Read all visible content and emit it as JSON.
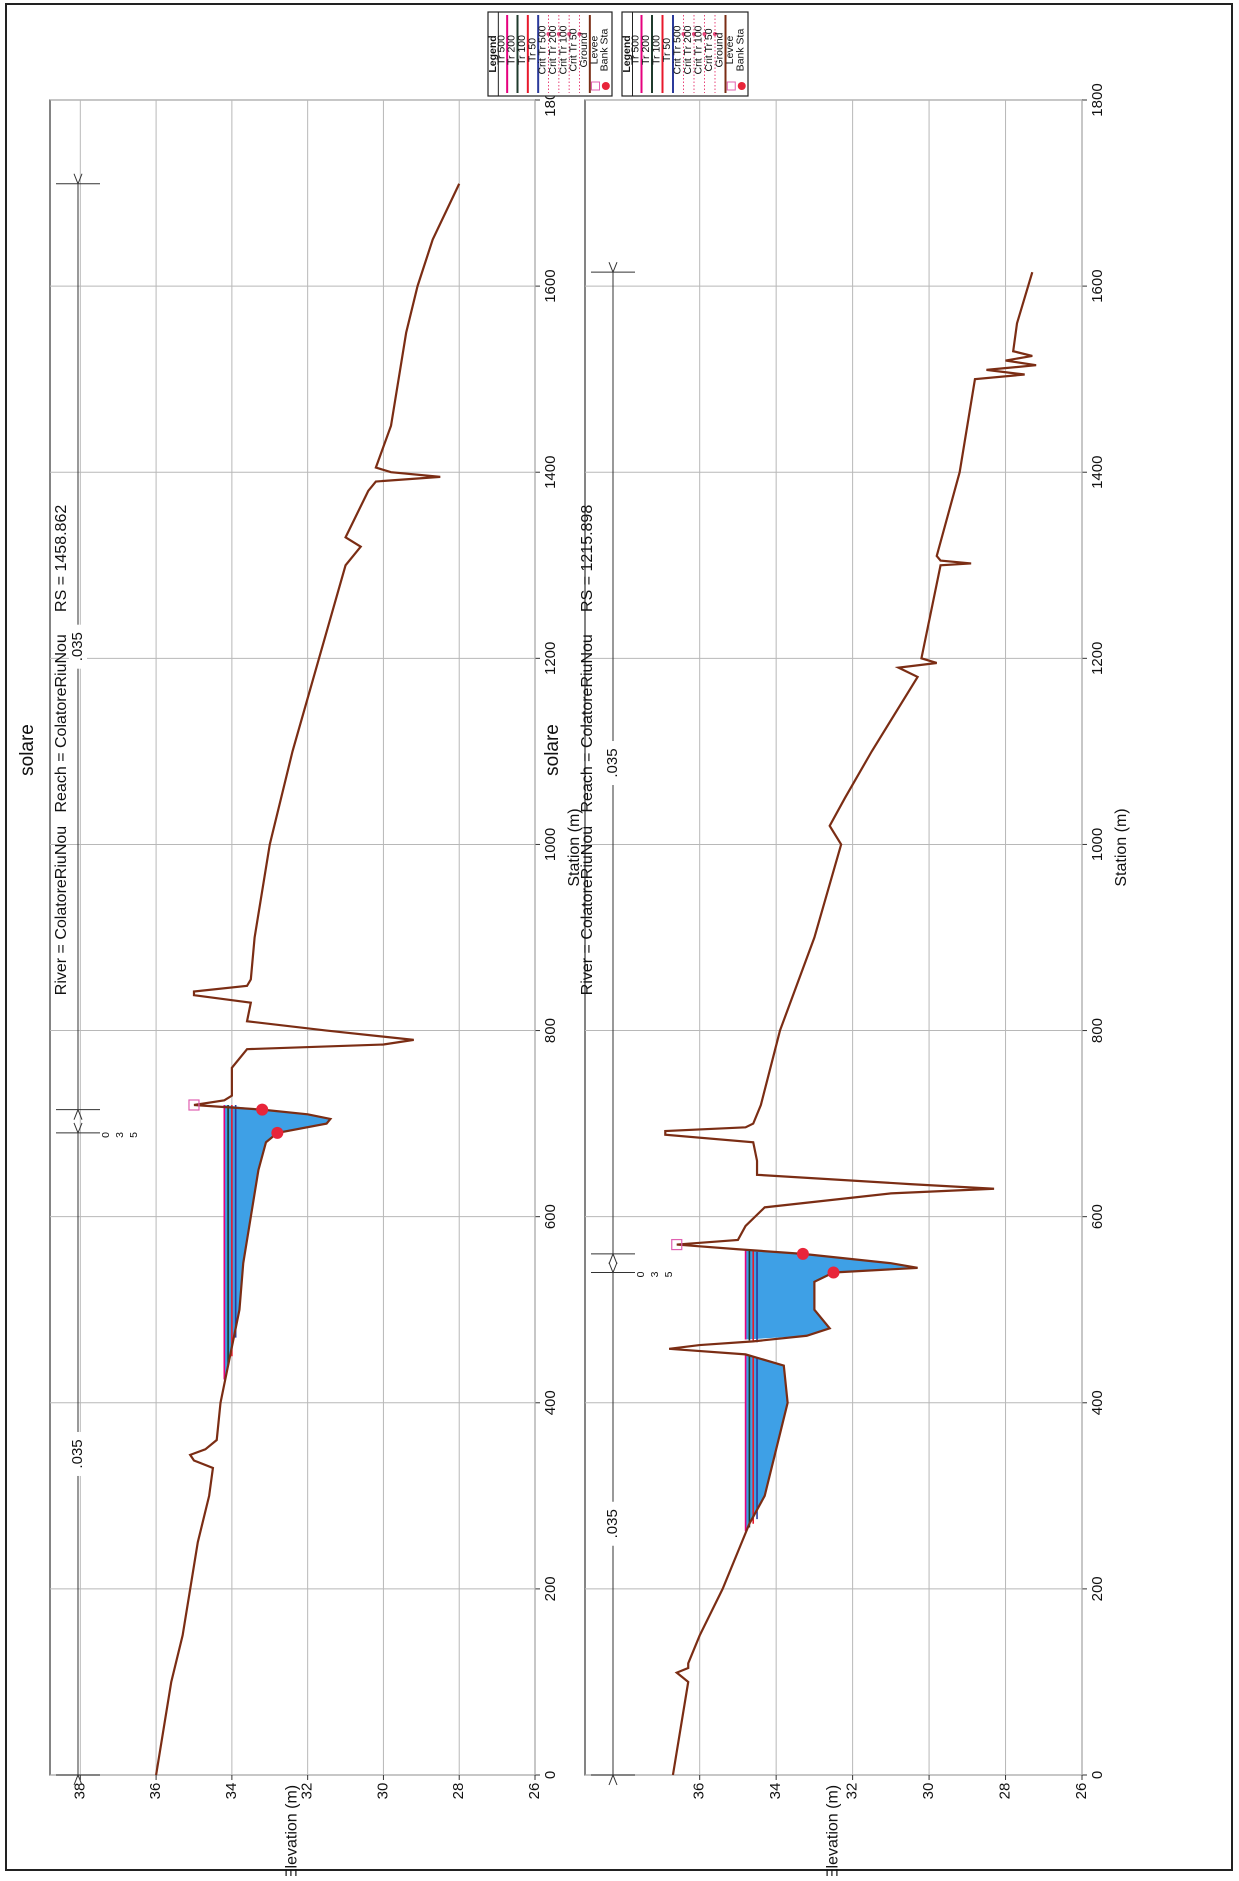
{
  "chart_data": [
    {
      "type": "cross-section",
      "title": "solare",
      "subtitle": "River = ColatoreRiuNou   Reach = ColatoreRiuNou     RS = 1458.862",
      "xlabel": "Station (m)",
      "ylabel": "Elevation (m)",
      "xlim": [
        0,
        1800
      ],
      "xticks": [
        0,
        200,
        400,
        600,
        800,
        1000,
        1200,
        1400,
        1600,
        1800
      ],
      "ylim": [
        26,
        38.8
      ],
      "yticks": [
        26,
        28,
        30,
        32,
        34,
        36,
        38
      ],
      "grid": true,
      "legend_title": "Legend",
      "series": [
        {
          "name": "Tr 500",
          "color": "#e6007e",
          "x": [
            425,
            720
          ],
          "values": [
            34.2,
            34.2
          ]
        },
        {
          "name": "Tr 200",
          "color": "#1f3b2c",
          "x": [
            440,
            720
          ],
          "values": [
            34.1,
            34.1
          ]
        },
        {
          "name": "Tr 100",
          "color": "#e8192c",
          "x": [
            450,
            720
          ],
          "values": [
            34.0,
            34.0
          ]
        },
        {
          "name": "Tr 50",
          "color": "#2b3a9b",
          "x": [
            470,
            720
          ],
          "values": [
            33.9,
            33.9
          ]
        }
      ],
      "crit_series": [
        {
          "name": "Crit Tr 500",
          "color": "#e8447a"
        },
        {
          "name": "Crit Tr 200",
          "color": "#e8447a"
        },
        {
          "name": "Crit Tr 100",
          "color": "#e8447a"
        },
        {
          "name": "Crit Tr 50",
          "color": "#e8447a"
        }
      ],
      "ground": {
        "name": "Ground",
        "color": "#7b2d14",
        "x": [
          0,
          50,
          100,
          150,
          200,
          250,
          300,
          330,
          338,
          344,
          350,
          360,
          400,
          440,
          500,
          550,
          600,
          650,
          680,
          690,
          700,
          705,
          710,
          715,
          720,
          725,
          730,
          760,
          780,
          785,
          790,
          800,
          810,
          830,
          838,
          842,
          848,
          855,
          900,
          1000,
          1100,
          1200,
          1300,
          1320,
          1330,
          1380,
          1390,
          1395,
          1400,
          1405,
          1450,
          1500,
          1550,
          1600,
          1650,
          1710
        ],
        "values": [
          36.0,
          35.8,
          35.6,
          35.3,
          35.1,
          34.9,
          34.6,
          34.5,
          35.0,
          35.1,
          34.7,
          34.4,
          34.3,
          34.1,
          33.8,
          33.7,
          33.5,
          33.3,
          33.1,
          32.8,
          31.5,
          31.4,
          32.0,
          33.2,
          35.0,
          34.2,
          34.0,
          34.0,
          33.6,
          30.0,
          29.2,
          31.5,
          33.6,
          33.5,
          35.0,
          35.0,
          33.6,
          33.5,
          33.4,
          33.0,
          32.4,
          31.7,
          31.0,
          30.6,
          31.0,
          30.4,
          30.2,
          28.5,
          29.8,
          30.2,
          29.8,
          29.6,
          29.4,
          29.1,
          28.7,
          28.0
        ]
      },
      "levee": {
        "name": "Levee",
        "color": "#e060b0",
        "x": [
          720
        ],
        "values": [
          35.0
        ]
      },
      "bank_stations": {
        "name": "Bank Sta",
        "color": "#e8253a",
        "x": [
          690,
          715
        ],
        "values": [
          32.8,
          33.2
        ]
      },
      "bank_labels": [
        "0",
        "3",
        "5"
      ],
      "roughness": [
        {
          "label": ".035",
          "x": [
            0,
            690
          ]
        },
        {
          "label": ".035",
          "x": [
            715,
            1710
          ]
        }
      ]
    },
    {
      "type": "cross-section",
      "title": "solare",
      "subtitle": "River = ColatoreRiuNou   Reach = ColatoreRiuNou     RS = 1215.898",
      "xlabel": "Station (m)",
      "ylabel": "Elevation (m)",
      "xlim": [
        0,
        1800
      ],
      "xticks": [
        0,
        200,
        400,
        600,
        800,
        1000,
        1200,
        1400,
        1600,
        1800
      ],
      "ylim": [
        26,
        39
      ],
      "yticks": [
        26,
        28,
        30,
        32,
        34,
        36
      ],
      "grid": true,
      "legend_title": "Legend",
      "series": [
        {
          "name": "Tr 500",
          "color": "#e6007e",
          "x": [
            262,
            452,
            460,
            468,
            565
          ],
          "values": [
            34.8,
            34.8,
            null,
            34.8,
            34.8
          ]
        },
        {
          "name": "Tr 200",
          "color": "#1f3b2c",
          "x": [
            266,
            451,
            460,
            467,
            564
          ],
          "values": [
            34.7,
            34.7,
            null,
            34.7,
            34.7
          ]
        },
        {
          "name": "Tr 100",
          "color": "#e8192c",
          "x": [
            270,
            450,
            460,
            466,
            563
          ],
          "values": [
            34.6,
            34.6,
            null,
            34.6,
            34.6
          ]
        },
        {
          "name": "Tr 50",
          "color": "#2b3a9b",
          "x": [
            275,
            449,
            460,
            465,
            562
          ],
          "values": [
            34.5,
            34.5,
            null,
            34.5,
            34.5
          ]
        }
      ],
      "crit_series": [
        {
          "name": "Crit Tr 500",
          "color": "#e8447a"
        },
        {
          "name": "Crit Tr 200",
          "color": "#e8447a"
        },
        {
          "name": "Crit Tr 100",
          "color": "#e8447a"
        },
        {
          "name": "Crit Tr 50",
          "color": "#e8447a"
        }
      ],
      "ground": {
        "name": "Ground",
        "color": "#7b2d14",
        "x": [
          0,
          50,
          100,
          110,
          115,
          120,
          150,
          200,
          250,
          270,
          300,
          350,
          400,
          440,
          452,
          458,
          462,
          466,
          472,
          480,
          500,
          530,
          540,
          545,
          550,
          560,
          565,
          570,
          575,
          590,
          610,
          625,
          630,
          635,
          645,
          660,
          680,
          688,
          692,
          696,
          700,
          720,
          800,
          900,
          1000,
          1020,
          1050,
          1100,
          1180,
          1190,
          1195,
          1200,
          1300,
          1302,
          1305,
          1310,
          1400,
          1500,
          1505,
          1510,
          1515,
          1520,
          1525,
          1530,
          1560,
          1615
        ],
        "values": [
          36.7,
          36.5,
          36.3,
          36.6,
          36.3,
          36.3,
          36.0,
          35.4,
          34.9,
          34.7,
          34.3,
          34.0,
          33.7,
          33.8,
          34.8,
          36.8,
          36.0,
          34.6,
          33.2,
          32.6,
          33.0,
          33.0,
          32.5,
          30.3,
          31.0,
          33.3,
          35.0,
          36.6,
          35.0,
          34.8,
          34.3,
          31.0,
          28.3,
          30.5,
          34.5,
          34.5,
          34.6,
          36.9,
          36.9,
          34.8,
          34.6,
          34.4,
          33.9,
          33.0,
          32.3,
          32.6,
          32.2,
          31.5,
          30.3,
          30.8,
          29.8,
          30.2,
          29.7,
          28.9,
          29.7,
          29.8,
          29.2,
          28.8,
          27.5,
          28.5,
          27.2,
          28.0,
          27.3,
          27.8,
          27.7,
          27.3
        ]
      },
      "levee": {
        "name": "Levee",
        "color": "#e060b0",
        "x": [
          570
        ],
        "values": [
          36.6
        ]
      },
      "bank_stations": {
        "name": "Bank Sta",
        "color": "#e8253a",
        "x": [
          540,
          560
        ],
        "values": [
          32.5,
          33.3
        ]
      },
      "bank_labels": [
        "0",
        "3",
        "5"
      ],
      "roughness": [
        {
          "label": ".035",
          "x": [
            0,
            540
          ]
        },
        {
          "label": ".035",
          "x": [
            560,
            1615
          ]
        }
      ]
    }
  ]
}
